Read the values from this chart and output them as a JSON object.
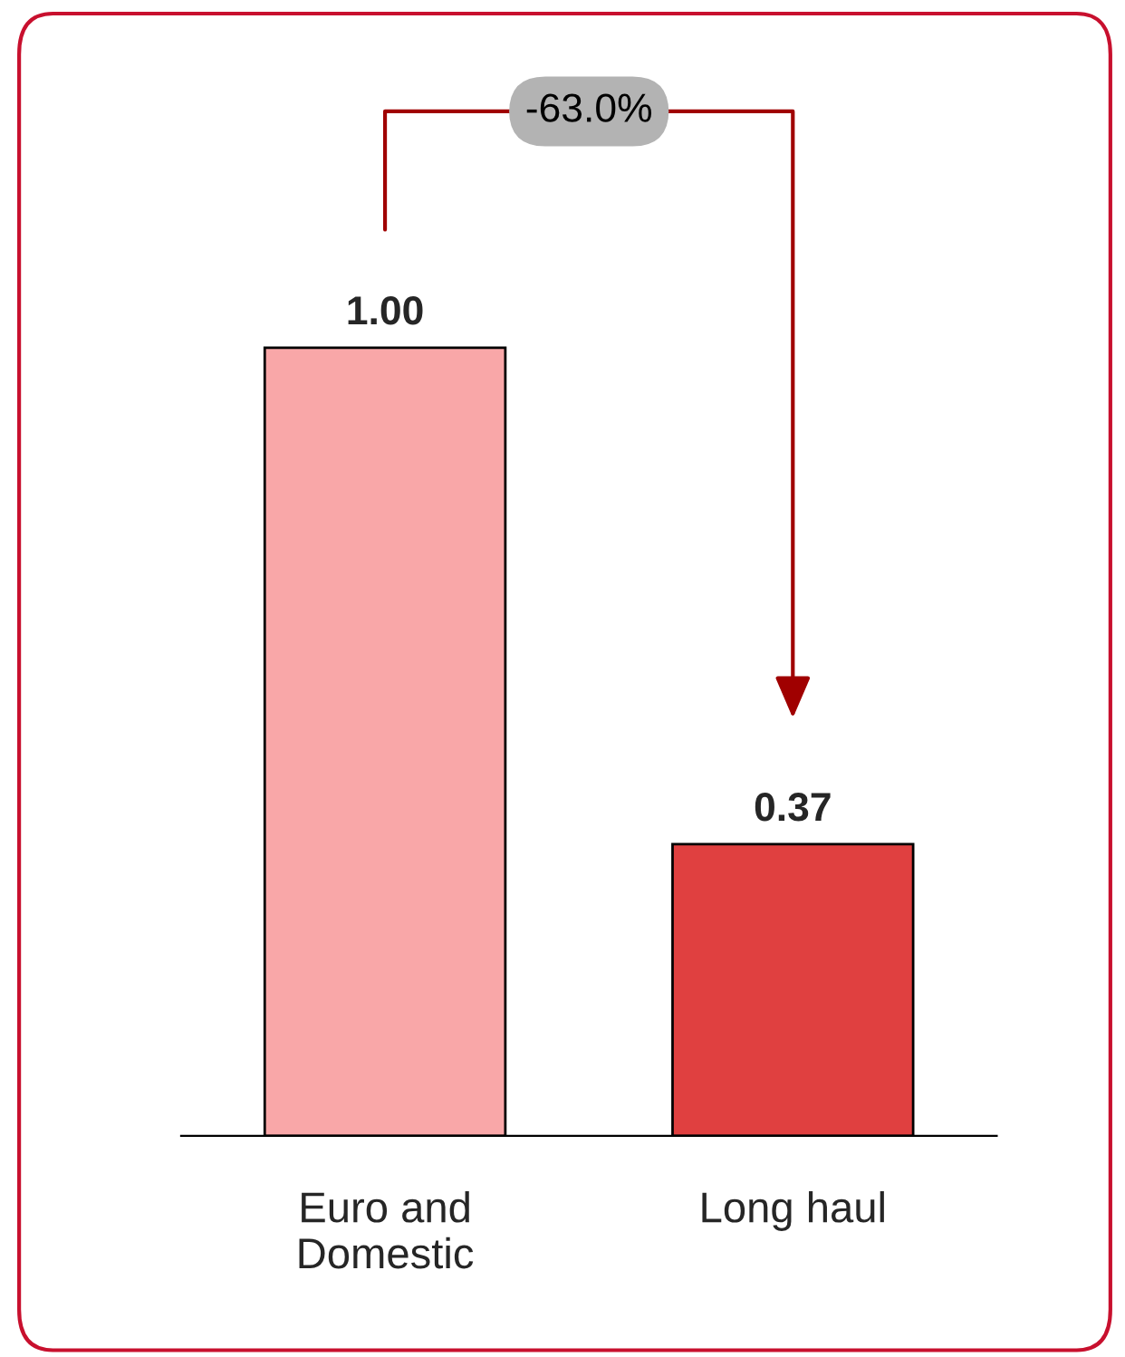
{
  "chart_data": {
    "type": "bar",
    "categories": [
      "Euro and\nDomestic",
      "Long haul"
    ],
    "values": [
      1.0,
      0.37
    ],
    "colors": [
      "#f9a7a8",
      "#e04040"
    ],
    "value_labels": [
      "1.00",
      "0.37"
    ],
    "tick_labels": "x",
    "grid": false,
    "legend": false,
    "annotations": [
      "-63.0%"
    ]
  }
}
